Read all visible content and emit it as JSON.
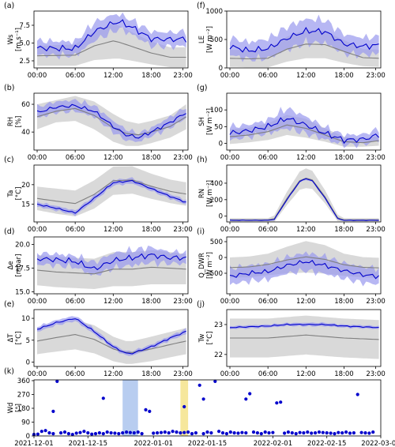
{
  "figure": {
    "style": {
      "obs_color": "#0000cc",
      "obs_band_color": "#9999ee",
      "model_color": "#7f7f7f",
      "model_band_color": "#d9d9d9",
      "wd_highlight_blue": "#b8cdf0",
      "wd_highlight_yellow": "#f6e79c"
    }
  },
  "chart_data": [
    {
      "id": "a",
      "panel_letter": "(a)",
      "type": "line",
      "ylabel_lines": [
        "Ws",
        "[m s⁻¹]"
      ],
      "ylim": [
        1.5,
        9.5
      ],
      "yticks": [
        2.5,
        5.0,
        7.5
      ],
      "ytick_labels": [
        "2.5",
        "5.0",
        "7.5"
      ],
      "x_hours_anchor": [
        0,
        6,
        9,
        12,
        13,
        15,
        18,
        21,
        23.5
      ],
      "obs_anchor": [
        4.3,
        4.2,
        6.6,
        7.8,
        8.0,
        7.2,
        5.6,
        5.5,
        5.6
      ],
      "obs_spread": [
        1.0,
        1.0,
        1.3,
        1.2,
        1.0,
        1.0,
        1.0,
        1.0,
        1.0
      ],
      "obs_wiggle": 0.5,
      "model_anchor": [
        3.2,
        3.3,
        4.6,
        5.3,
        5.1,
        4.5,
        3.6,
        3.0,
        3.0
      ],
      "model_spread": [
        1.4,
        1.5,
        2.0,
        2.5,
        2.3,
        2.0,
        1.6,
        1.4,
        1.4
      ],
      "side": "left",
      "row": 0
    },
    {
      "id": "b",
      "panel_letter": "(b)",
      "type": "line",
      "ylabel_lines": [
        "RH",
        "[%]"
      ],
      "ylim": [
        27,
        68
      ],
      "yticks": [
        40,
        60
      ],
      "ytick_labels": [
        "40",
        "60"
      ],
      "x_hours_anchor": [
        0,
        3,
        6,
        9,
        12,
        14,
        16,
        18,
        21,
        23.5
      ],
      "obs_anchor": [
        54,
        58,
        59,
        55,
        44,
        38,
        36,
        40,
        47,
        54
      ],
      "obs_spread": [
        4,
        4,
        4,
        4,
        4,
        4,
        3,
        3,
        4,
        4
      ],
      "obs_wiggle": 1.5,
      "model_anchor": [
        51,
        55,
        57,
        52,
        43,
        39,
        38,
        40,
        44,
        51
      ],
      "model_spread": [
        9,
        8,
        9,
        10,
        10,
        9,
        8,
        8,
        8,
        9
      ],
      "side": "left",
      "row": 1
    },
    {
      "id": "c",
      "panel_letter": "(c)",
      "type": "line",
      "ylabel_lines": [
        "Ta",
        "[°C]"
      ],
      "ylim": [
        10.5,
        25
      ],
      "yticks": [
        15,
        20
      ],
      "ytick_labels": [
        "15",
        "20"
      ],
      "x_hours_anchor": [
        0,
        3,
        6,
        9,
        12,
        15,
        18,
        21,
        23.5
      ],
      "obs_anchor": [
        15.0,
        14.0,
        12.8,
        16.5,
        20.5,
        21.0,
        19.0,
        17.0,
        15.5
      ],
      "obs_spread": [
        0.6,
        0.6,
        0.6,
        0.7,
        0.7,
        0.7,
        0.6,
        0.6,
        0.6
      ],
      "obs_wiggle": 0.2,
      "model_anchor": [
        16.5,
        15.8,
        15.2,
        17.5,
        21.0,
        21.2,
        19.6,
        18.3,
        17.6
      ],
      "model_spread": [
        3.0,
        3.2,
        3.3,
        3.6,
        3.6,
        3.5,
        3.2,
        3.0,
        3.0
      ],
      "side": "left",
      "row": 2
    },
    {
      "id": "d",
      "panel_letter": "(d)",
      "type": "line",
      "ylabel_lines": [
        "Δe",
        "[mbar]"
      ],
      "ylim": [
        14.8,
        20.8
      ],
      "yticks": [
        15.0,
        17.5,
        20.0
      ],
      "ytick_labels": [
        "15.0",
        "17.5",
        "20.0"
      ],
      "x_hours_anchor": [
        0,
        3,
        6,
        9,
        12,
        15,
        18,
        21,
        23.5
      ],
      "obs_anchor": [
        18.5,
        18.4,
        18.2,
        17.4,
        18.3,
        18.6,
        18.9,
        18.6,
        18.6
      ],
      "obs_spread": [
        0.6,
        0.6,
        0.6,
        0.7,
        0.8,
        0.8,
        0.8,
        0.6,
        0.6
      ],
      "obs_wiggle": 0.35,
      "model_anchor": [
        17.3,
        17.1,
        17.0,
        16.9,
        17.4,
        17.4,
        17.6,
        17.5,
        17.4
      ],
      "model_spread": [
        1.6,
        1.6,
        1.6,
        1.6,
        1.8,
        1.8,
        1.8,
        1.7,
        1.6
      ],
      "side": "left",
      "row": 3
    },
    {
      "id": "e",
      "panel_letter": "(e)",
      "type": "line",
      "ylabel_lines": [
        "ΔT",
        "[°C]"
      ],
      "ylim": [
        -1,
        12
      ],
      "yticks": [
        0,
        5,
        10
      ],
      "ytick_labels": [
        "0",
        "5",
        "10"
      ],
      "x_hours_anchor": [
        0,
        3,
        6,
        9,
        12,
        14,
        15,
        18,
        21,
        23.5
      ],
      "obs_anchor": [
        7.5,
        9.0,
        10.0,
        7.0,
        3.5,
        2.0,
        2.0,
        3.5,
        5.5,
        7.0
      ],
      "obs_spread": [
        0.6,
        0.6,
        0.6,
        0.6,
        0.5,
        0.5,
        0.5,
        0.5,
        0.5,
        0.6
      ],
      "obs_wiggle": 0.2,
      "model_anchor": [
        4.8,
        5.6,
        6.3,
        5.2,
        3.0,
        2.2,
        2.2,
        3.0,
        4.0,
        4.8
      ],
      "model_spread": [
        3.0,
        3.2,
        3.4,
        3.2,
        2.8,
        2.6,
        2.6,
        2.8,
        2.9,
        3.0
      ],
      "side": "left",
      "row": 4
    },
    {
      "id": "f",
      "panel_letter": "(f)",
      "type": "line",
      "ylabel_lines": [
        "LE",
        "[W m⁻²]"
      ],
      "ylim": [
        0,
        1000
      ],
      "yticks": [
        0,
        500,
        1000
      ],
      "ytick_labels": [
        "0",
        "500",
        "1000"
      ],
      "x_hours_anchor": [
        0,
        3,
        6,
        9,
        12,
        15,
        18,
        21,
        23.5
      ],
      "obs_anchor": [
        380,
        300,
        340,
        520,
        650,
        640,
        420,
        380,
        400
      ],
      "obs_spread": [
        150,
        150,
        170,
        200,
        210,
        200,
        170,
        150,
        150
      ],
      "obs_wiggle": 60,
      "model_anchor": [
        170,
        160,
        170,
        330,
        420,
        410,
        290,
        180,
        170
      ],
      "model_spread": [
        150,
        150,
        160,
        220,
        250,
        240,
        200,
        150,
        150
      ],
      "side": "right",
      "row": 0
    },
    {
      "id": "g",
      "panel_letter": "(g)",
      "type": "line",
      "ylabel_lines": [
        "SH",
        "[W m⁻²]"
      ],
      "ylim": [
        -20,
        150
      ],
      "yticks": [
        0,
        50,
        100
      ],
      "ytick_labels": [
        "0",
        "50",
        "100"
      ],
      "x_hours_anchor": [
        0,
        3,
        6,
        9,
        12,
        15,
        18,
        21,
        23.5
      ],
      "obs_anchor": [
        30,
        38,
        50,
        75,
        55,
        30,
        10,
        12,
        25
      ],
      "obs_spread": [
        20,
        18,
        20,
        30,
        25,
        18,
        15,
        15,
        18
      ],
      "obs_wiggle": 10,
      "model_anchor": [
        20,
        25,
        35,
        55,
        45,
        25,
        5,
        2,
        8
      ],
      "model_spread": [
        22,
        22,
        25,
        30,
        28,
        20,
        15,
        12,
        15
      ],
      "side": "right",
      "row": 1
    },
    {
      "id": "h",
      "panel_letter": "(h)",
      "type": "line",
      "ylabel_lines": [
        "RN",
        "[W m⁻²]"
      ],
      "ylim": [
        -70,
        620
      ],
      "yticks": [
        0,
        200,
        400
      ],
      "ytick_labels": [
        "0",
        "200",
        "400"
      ],
      "x_hours_anchor": [
        0,
        6,
        7,
        9,
        11,
        12,
        13,
        15,
        17,
        18,
        23.5
      ],
      "obs_anchor": [
        -50,
        -50,
        -40,
        200,
        420,
        455,
        430,
        220,
        -30,
        -50,
        -50
      ],
      "obs_spread": [
        6,
        6,
        8,
        12,
        14,
        14,
        14,
        12,
        8,
        6,
        6
      ],
      "obs_wiggle": 3,
      "model_anchor": [
        -45,
        -45,
        -30,
        215,
        430,
        460,
        440,
        235,
        -20,
        -45,
        -45
      ],
      "model_spread": [
        20,
        20,
        40,
        80,
        110,
        120,
        110,
        80,
        40,
        20,
        20
      ],
      "side": "right",
      "row": 2
    },
    {
      "id": "i",
      "panel_letter": "(i)",
      "type": "line",
      "ylabel_lines": [
        "Q_DWR",
        "[W m⁻²]"
      ],
      "ylim": [
        -1150,
        650
      ],
      "yticks": [
        -500,
        0,
        500
      ],
      "ytick_labels": [
        "−500",
        "0",
        "500"
      ],
      "x_hours_anchor": [
        0,
        3,
        6,
        9,
        12,
        15,
        18,
        21,
        23.5
      ],
      "obs_anchor": [
        -600,
        -500,
        -450,
        -250,
        -130,
        -250,
        -420,
        -550,
        -600
      ],
      "obs_spread": [
        250,
        250,
        250,
        260,
        280,
        270,
        250,
        250,
        250
      ],
      "obs_wiggle": 80,
      "model_anchor": [
        -320,
        -300,
        -220,
        -80,
        20,
        -60,
        -230,
        -310,
        -330
      ],
      "model_spread": [
        320,
        330,
        340,
        420,
        500,
        450,
        350,
        320,
        320
      ],
      "side": "right",
      "row": 3
    },
    {
      "id": "j",
      "panel_letter": "(j)",
      "type": "line",
      "ylabel_lines": [
        "Tw",
        "[°C]"
      ],
      "ylim": [
        21.6,
        23.5
      ],
      "yticks": [
        22,
        23
      ],
      "ytick_labels": [
        "22",
        "23"
      ],
      "x_hours_anchor": [
        0,
        6,
        9,
        12,
        15,
        18,
        23.5
      ],
      "obs_anchor": [
        22.9,
        22.95,
        23.0,
        23.0,
        23.0,
        22.95,
        22.9
      ],
      "obs_spread": [
        0.05,
        0.05,
        0.05,
        0.06,
        0.06,
        0.05,
        0.05
      ],
      "obs_wiggle": 0.02,
      "model_anchor": [
        22.55,
        22.55,
        22.6,
        22.65,
        22.6,
        22.55,
        22.5
      ],
      "model_spread": [
        0.65,
        0.65,
        0.65,
        0.65,
        0.65,
        0.65,
        0.65
      ],
      "side": "right",
      "row": 4
    }
  ],
  "x_axis_hours": {
    "ticks": [
      0,
      6,
      12,
      18,
      23
    ],
    "labels": [
      "00:00",
      "06:00",
      "12:00",
      "18:00",
      "23:00"
    ],
    "range": [
      -0.5,
      23.8
    ]
  },
  "wd_panel": {
    "panel_letter": "(k)",
    "type": "scatter",
    "ylabel_lines": [
      "Wd",
      "[°]"
    ],
    "ylim": [
      0,
      365
    ],
    "yticks": [
      0,
      90,
      180,
      270,
      360
    ],
    "ytick_labels": [
      "0",
      "90",
      "180",
      "270",
      "360"
    ],
    "x_start": "2021-12-01",
    "x_end": "2022-03-01",
    "xticks": [
      "2021-12-01",
      "2021-12-15",
      "2022-01-01",
      "2022-01-15",
      "2022-02-01",
      "2022-02-15",
      "2022-03-01"
    ],
    "highlight_spans": [
      {
        "start": "2021-12-24",
        "end": "2021-12-28",
        "color": "#b8cdf0"
      },
      {
        "start": "2022-01-08",
        "end": "2022-01-10",
        "color": "#f6e79c"
      }
    ],
    "points": [
      [
        "2021-12-01",
        10
      ],
      [
        "2021-12-02",
        12
      ],
      [
        "2021-12-03",
        30
      ],
      [
        "2021-12-04",
        35
      ],
      [
        "2021-12-05",
        20
      ],
      [
        "2021-12-06",
        160
      ],
      [
        "2021-12-06",
        15
      ],
      [
        "2021-12-07",
        355
      ],
      [
        "2021-12-08",
        20
      ],
      [
        "2021-12-09",
        25
      ],
      [
        "2021-12-10",
        15
      ],
      [
        "2021-12-11",
        10
      ],
      [
        "2021-12-12",
        18
      ],
      [
        "2021-12-13",
        22
      ],
      [
        "2021-12-14",
        30
      ],
      [
        "2021-12-15",
        20
      ],
      [
        "2021-12-16",
        12
      ],
      [
        "2021-12-17",
        15
      ],
      [
        "2021-12-18",
        20
      ],
      [
        "2021-12-19",
        245
      ],
      [
        "2021-12-19",
        15
      ],
      [
        "2021-12-20",
        25
      ],
      [
        "2021-12-21",
        20
      ],
      [
        "2021-12-22",
        18
      ],
      [
        "2021-12-23",
        15
      ],
      [
        "2021-12-24",
        20
      ],
      [
        "2021-12-25",
        25
      ],
      [
        "2021-12-26",
        22
      ],
      [
        "2021-12-27",
        20
      ],
      [
        "2021-12-28",
        25
      ],
      [
        "2021-12-29",
        15
      ],
      [
        "2021-12-30",
        170
      ],
      [
        "2021-12-31",
        160
      ],
      [
        "2022-01-01",
        18
      ],
      [
        "2022-01-02",
        20
      ],
      [
        "2022-01-03",
        22
      ],
      [
        "2022-01-04",
        25
      ],
      [
        "2022-01-05",
        20
      ],
      [
        "2022-01-06",
        30
      ],
      [
        "2022-01-07",
        25
      ],
      [
        "2022-01-08",
        20
      ],
      [
        "2022-01-09",
        190
      ],
      [
        "2022-01-09",
        22
      ],
      [
        "2022-01-10",
        25
      ],
      [
        "2022-01-11",
        15
      ],
      [
        "2022-01-12",
        20
      ],
      [
        "2022-01-13",
        330
      ],
      [
        "2022-01-14",
        240
      ],
      [
        "2022-01-14",
        15
      ],
      [
        "2022-01-15",
        25
      ],
      [
        "2022-01-16",
        20
      ],
      [
        "2022-01-17",
        355
      ],
      [
        "2022-01-18",
        30
      ],
      [
        "2022-01-19",
        20
      ],
      [
        "2022-01-20",
        15
      ],
      [
        "2022-01-21",
        25
      ],
      [
        "2022-01-22",
        20
      ],
      [
        "2022-01-23",
        18
      ],
      [
        "2022-01-24",
        22
      ],
      [
        "2022-01-25",
        240
      ],
      [
        "2022-01-25",
        20
      ],
      [
        "2022-01-26",
        275
      ],
      [
        "2022-01-27",
        25
      ],
      [
        "2022-01-28",
        20
      ],
      [
        "2022-01-29",
        15
      ],
      [
        "2022-01-30",
        25
      ],
      [
        "2022-01-31",
        20
      ],
      [
        "2022-02-01",
        22
      ],
      [
        "2022-02-02",
        215
      ],
      [
        "2022-02-03",
        220
      ],
      [
        "2022-02-04",
        18
      ],
      [
        "2022-02-05",
        25
      ],
      [
        "2022-02-06",
        20
      ],
      [
        "2022-02-07",
        15
      ],
      [
        "2022-02-08",
        22
      ],
      [
        "2022-02-09",
        20
      ],
      [
        "2022-02-10",
        25
      ],
      [
        "2022-02-11",
        18
      ],
      [
        "2022-02-12",
        20
      ],
      [
        "2022-02-13",
        25
      ],
      [
        "2022-02-14",
        22
      ],
      [
        "2022-02-15",
        20
      ],
      [
        "2022-02-16",
        18
      ],
      [
        "2022-02-17",
        15
      ],
      [
        "2022-02-18",
        22
      ],
      [
        "2022-02-19",
        20
      ],
      [
        "2022-02-20",
        25
      ],
      [
        "2022-02-21",
        18
      ],
      [
        "2022-02-22",
        20
      ],
      [
        "2022-02-23",
        270
      ],
      [
        "2022-02-24",
        22
      ],
      [
        "2022-02-25",
        20
      ],
      [
        "2022-02-26",
        18
      ],
      [
        "2022-02-27",
        25
      ]
    ]
  }
}
